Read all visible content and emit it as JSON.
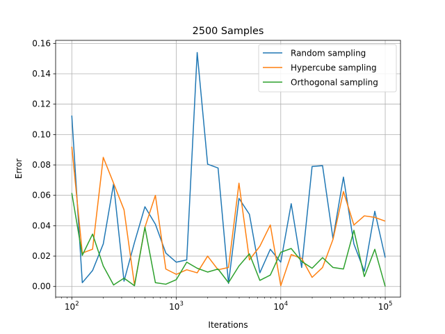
{
  "chart_data": {
    "type": "line",
    "title": "2500 Samples",
    "xlabel": "Iterations",
    "ylabel": "Error",
    "xscale": "log",
    "xlim": [
      70,
      140000
    ],
    "ylim": [
      -0.007,
      0.162
    ],
    "grid": true,
    "legend_position": "top-right",
    "y_ticks": [
      "0.00",
      "0.02",
      "0.04",
      "0.06",
      "0.08",
      "0.10",
      "0.12",
      "0.14",
      "0.16"
    ],
    "x_ticks": [
      {
        "base": "10",
        "exp": "2"
      },
      {
        "base": "10",
        "exp": "3"
      },
      {
        "base": "10",
        "exp": "4"
      },
      {
        "base": "10",
        "exp": "5"
      }
    ],
    "x": [
      100,
      126,
      158,
      200,
      251,
      316,
      398,
      501,
      631,
      794,
      1000,
      1259,
      1585,
      1995,
      2512,
      3162,
      3981,
      5012,
      6310,
      7943,
      10000,
      12589,
      15849,
      19953,
      25119,
      31623,
      39811,
      50119,
      63096,
      79433,
      100000
    ],
    "series": [
      {
        "name": "Random sampling",
        "color": "#1f77b4",
        "values": [
          0.1125,
          0.0025,
          0.0105,
          0.028,
          0.0675,
          0.0035,
          0.029,
          0.0525,
          0.041,
          0.022,
          0.016,
          0.0175,
          0.154,
          0.0805,
          0.078,
          0.002,
          0.058,
          0.0475,
          0.009,
          0.0245,
          0.016,
          0.0545,
          0.0125,
          0.079,
          0.0795,
          0.0315,
          0.072,
          0.028,
          0.01,
          0.0495,
          0.019
        ]
      },
      {
        "name": "Hypercube sampling",
        "color": "#ff7f0e",
        "values": [
          0.092,
          0.022,
          0.0245,
          0.085,
          0.068,
          0.0505,
          0.001,
          0.039,
          0.06,
          0.0115,
          0.008,
          0.011,
          0.009,
          0.02,
          0.011,
          0.0125,
          0.068,
          0.0175,
          0.0265,
          0.0405,
          0.0005,
          0.021,
          0.0185,
          0.006,
          0.0125,
          0.031,
          0.0625,
          0.0405,
          0.0465,
          0.0455,
          0.043
        ]
      },
      {
        "name": "Orthogonal sampling",
        "color": "#2ca02c",
        "values": [
          0.0615,
          0.0205,
          0.0345,
          0.0135,
          0.001,
          0.0055,
          0.0005,
          0.039,
          0.0025,
          0.0015,
          0.0045,
          0.016,
          0.012,
          0.0095,
          0.0115,
          0.0025,
          0.0135,
          0.0215,
          0.004,
          0.0075,
          0.0225,
          0.025,
          0.0165,
          0.012,
          0.019,
          0.0125,
          0.0115,
          0.037,
          0.0065,
          0.0245,
          0.0
        ]
      }
    ]
  }
}
